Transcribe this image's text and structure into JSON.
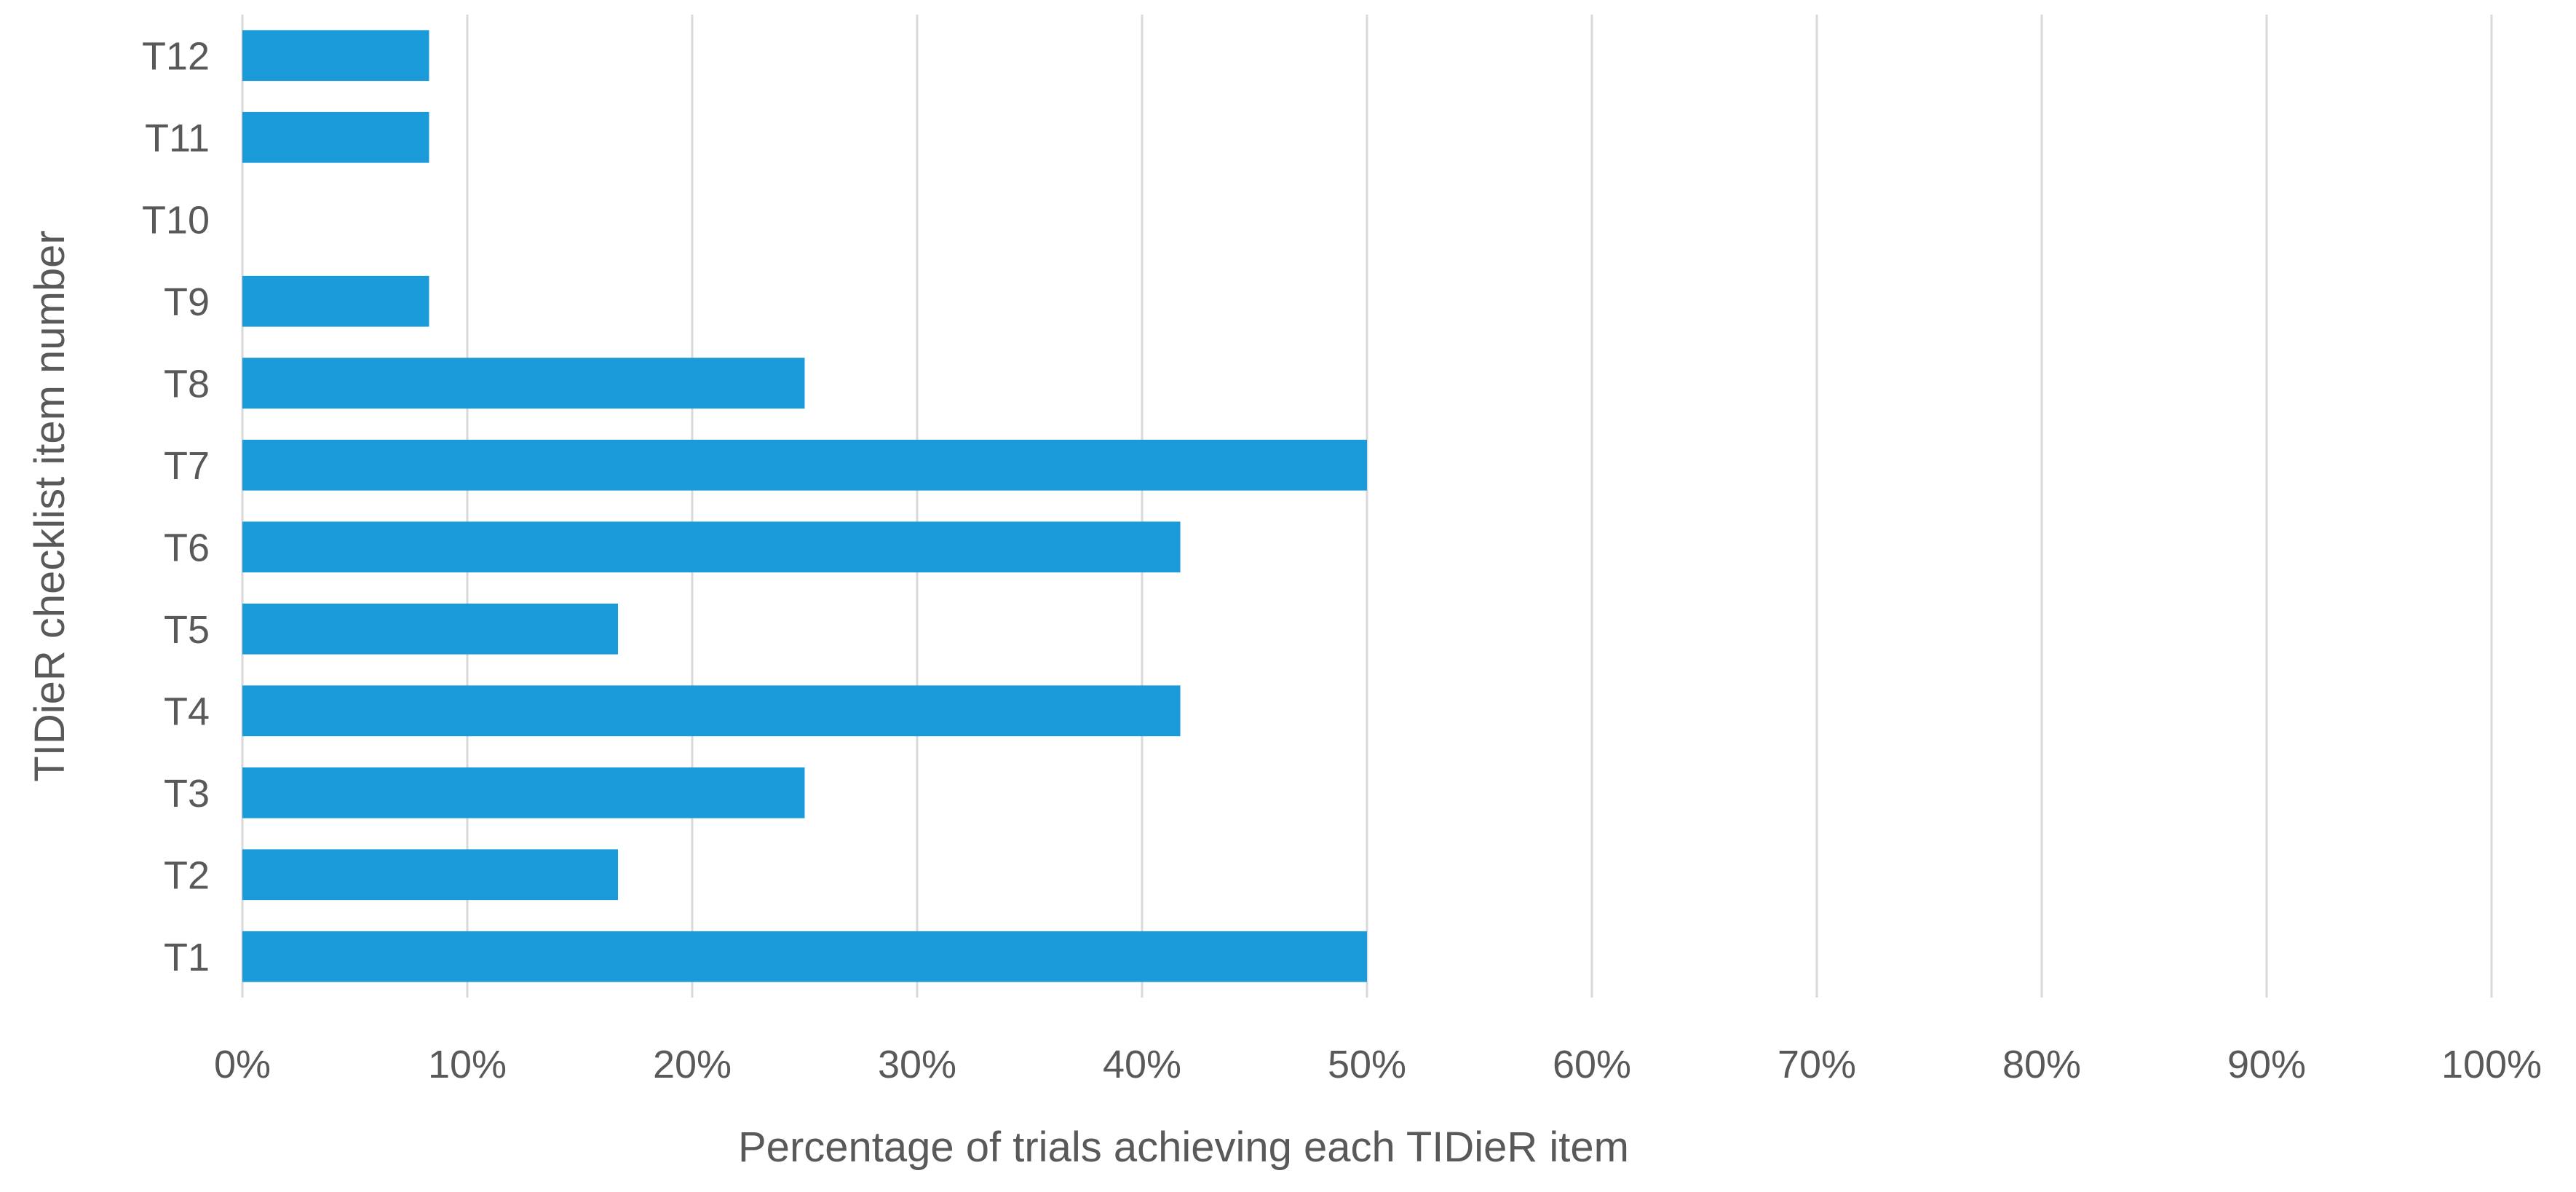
{
  "chart_data": {
    "type": "bar",
    "orientation": "horizontal",
    "categories": [
      "T1",
      "T2",
      "T3",
      "T4",
      "T5",
      "T6",
      "T7",
      "T8",
      "T9",
      "T10",
      "T11",
      "T12"
    ],
    "values": [
      50,
      16.7,
      25,
      41.7,
      16.7,
      41.7,
      50,
      25,
      8.3,
      0,
      8.3,
      8.3
    ],
    "value_unit": "%",
    "xlabel": "Percentage of trials achieving each TIDieR item",
    "ylabel": "TIDieR checklist item number",
    "xlim": [
      0,
      100
    ],
    "x_ticks": [
      "0%",
      "10%",
      "20%",
      "30%",
      "40%",
      "50%",
      "60%",
      "70%",
      "80%",
      "90%",
      "100%"
    ],
    "grid": "vertical",
    "legend": "none",
    "colors": {
      "bar": "#1a9ad8",
      "gridline": "#d9d9d9",
      "text": "#595959"
    }
  }
}
